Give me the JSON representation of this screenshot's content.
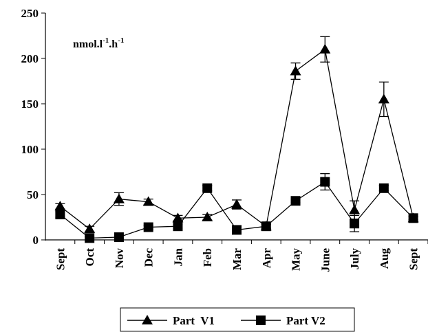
{
  "chart_data": {
    "type": "line",
    "annotation": [
      "nmol.l",
      "-1",
      ".h",
      "-1"
    ],
    "categories": [
      "Sept",
      "Oct",
      "Nov",
      "Dec",
      "Jan",
      "Feb",
      "Mar",
      "Apr",
      "May",
      "June",
      "July",
      "Aug",
      "Sept"
    ],
    "series": [
      {
        "name": "Part  V1",
        "color": "#000000",
        "marker": "triangle",
        "values": [
          37,
          12,
          45,
          42,
          24,
          25,
          39,
          15,
          186,
          210,
          33,
          155,
          24
        ],
        "errors": [
          3,
          3,
          7,
          3,
          3,
          3,
          5,
          3,
          9,
          14,
          10,
          19,
          2
        ]
      },
      {
        "name": "Part V2",
        "color": "#000000",
        "marker": "square",
        "values": [
          28,
          2,
          3,
          14,
          15,
          57,
          11,
          15,
          43,
          64,
          18,
          57,
          24
        ],
        "errors": [
          3,
          2,
          2,
          2,
          2,
          3,
          2,
          2,
          2,
          9,
          9,
          3,
          2
        ]
      }
    ],
    "ylim": [
      0,
      250
    ],
    "yticks": [
      0,
      50,
      100,
      150,
      200,
      250
    ],
    "grid": false,
    "legend": "bottom"
  }
}
